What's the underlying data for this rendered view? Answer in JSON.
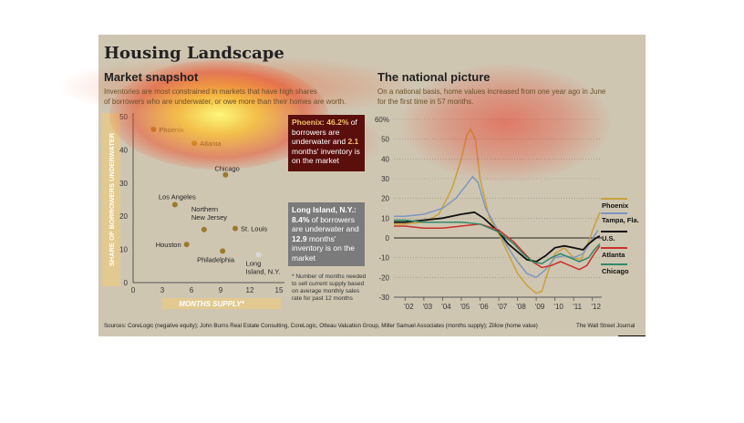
{
  "header": {
    "title": "Housing Landscape"
  },
  "left": {
    "subtitle": "Market snapshot",
    "description_line1": "Inventories are most constrained in markets that have high shares",
    "description_line2": "of borrowers who are underwater, or owe more than their homes are worth.",
    "callout_phoenix": {
      "city": "Phoenix:",
      "pct": "46.2%",
      "t1": "of borrowers are underwater and",
      "months": "2.1",
      "t2": "months' inventory is on the market"
    },
    "callout_longisland": {
      "city": "Long Island, N.Y.:",
      "pct": "8.4%",
      "t1": "of borrowers are underwater and",
      "months": "12.9",
      "t2": "months' inventory is on the market"
    },
    "note": "* Number of months needed to sell current supply based on average monthly sales rate for past 12 months"
  },
  "right": {
    "subtitle": "The national picture",
    "description_line1": "On a national basis, home values increased from one year ago in June",
    "description_line2": "for the first time in 57 months."
  },
  "footer": {
    "sources": "Sources: CoreLogic (negative equity); John Burns Real Estate Consulting, CoreLogic, Otteau Valuation Group, Miller Samuel Associates (months supply); Zillow (home value)",
    "credit": "The Wall Street Journal"
  },
  "chart_data": [
    {
      "type": "scatter",
      "title": "Market snapshot",
      "xlabel": "MONTHS SUPPLY*",
      "ylabel": "SHARE OF BORROWERS UNDERWATER",
      "xlim": [
        0,
        15
      ],
      "ylim": [
        0,
        50
      ],
      "x_ticks": [
        "0",
        "3",
        "6",
        "9",
        "12",
        "15"
      ],
      "y_ticks": [
        "0",
        "10",
        "20",
        "30",
        "40",
        "50"
      ],
      "points": [
        {
          "label": "Phoenix",
          "x": 2.1,
          "y": 46.2,
          "highlight": "dark-red"
        },
        {
          "label": "Atlanta",
          "x": 6.3,
          "y": 42
        },
        {
          "label": "Chicago",
          "x": 9.5,
          "y": 32.5
        },
        {
          "label": "Los Angeles",
          "x": 4.3,
          "y": 23.5
        },
        {
          "label": "Northern New Jersey",
          "x": 7.3,
          "y": 16
        },
        {
          "label": "St. Louis",
          "x": 10.5,
          "y": 16.3
        },
        {
          "label": "Houston",
          "x": 5.5,
          "y": 11.5
        },
        {
          "label": "Philadelphia",
          "x": 9.2,
          "y": 9.5
        },
        {
          "label": "Long Island, N.Y.",
          "x": 12.9,
          "y": 8.4,
          "highlight": "gray"
        }
      ],
      "colors": {
        "point": "#9a7a2e",
        "highlight_dark": "#5c0c0c",
        "highlight_gray": "#7f7f7f"
      }
    },
    {
      "type": "line",
      "title": "The national picture",
      "ylabel": "",
      "ylim": [
        -30,
        60
      ],
      "y_ticks": [
        "60%",
        "50",
        "40",
        "30",
        "20",
        "10",
        "0",
        "-10",
        "-20",
        "-30"
      ],
      "x_ticks": [
        "'02",
        "'03",
        "'04",
        "'05",
        "'06",
        "'07",
        "'08",
        "'09",
        "'10",
        "'11",
        "'12"
      ],
      "x_years": [
        2002,
        2003,
        2004,
        2005,
        2006,
        2007,
        2008,
        2009,
        2010,
        2011,
        2012
      ],
      "series": [
        {
          "name": "Phoenix",
          "color": "#c9a13b",
          "points": [
            [
              2001.4,
              7
            ],
            [
              2002,
              7
            ],
            [
              2003,
              8
            ],
            [
              2003.8,
              12
            ],
            [
              2004.5,
              25
            ],
            [
              2005,
              40
            ],
            [
              2005.3,
              52
            ],
            [
              2005.5,
              55
            ],
            [
              2005.75,
              50
            ],
            [
              2006,
              30
            ],
            [
              2006.5,
              10
            ],
            [
              2007,
              2
            ],
            [
              2007.5,
              -8
            ],
            [
              2008,
              -18
            ],
            [
              2008.5,
              -24
            ],
            [
              2009,
              -28
            ],
            [
              2009.3,
              -27
            ],
            [
              2009.6,
              -18
            ],
            [
              2010,
              -8
            ],
            [
              2010.5,
              -5
            ],
            [
              2011,
              -10
            ],
            [
              2011.4,
              -11
            ],
            [
              2011.8,
              -2
            ],
            [
              2012.1,
              6
            ],
            [
              2012.4,
              13
            ]
          ]
        },
        {
          "name": "Tampa, Fla.",
          "color": "#7e96c0",
          "points": [
            [
              2001.4,
              11
            ],
            [
              2002,
              11
            ],
            [
              2003,
              12
            ],
            [
              2004,
              15
            ],
            [
              2004.7,
              20
            ],
            [
              2005.2,
              26
            ],
            [
              2005.6,
              31
            ],
            [
              2005.9,
              28
            ],
            [
              2006.3,
              15
            ],
            [
              2007,
              3
            ],
            [
              2007.5,
              -5
            ],
            [
              2008,
              -12
            ],
            [
              2008.5,
              -18
            ],
            [
              2009,
              -20
            ],
            [
              2009.5,
              -16
            ],
            [
              2010,
              -10
            ],
            [
              2010.5,
              -9
            ],
            [
              2011,
              -10
            ],
            [
              2011.5,
              -8
            ],
            [
              2011.9,
              -2
            ],
            [
              2012.3,
              4
            ]
          ]
        },
        {
          "name": "U.S.",
          "color": "#111111",
          "points": [
            [
              2001.4,
              8
            ],
            [
              2002,
              8
            ],
            [
              2003,
              9
            ],
            [
              2004,
              10
            ],
            [
              2005,
              12
            ],
            [
              2005.7,
              13
            ],
            [
              2006.2,
              10
            ],
            [
              2007,
              3
            ],
            [
              2007.5,
              -3
            ],
            [
              2008,
              -7
            ],
            [
              2008.5,
              -11
            ],
            [
              2009,
              -12
            ],
            [
              2009.5,
              -9
            ],
            [
              2010,
              -5
            ],
            [
              2010.5,
              -4
            ],
            [
              2011,
              -5
            ],
            [
              2011.5,
              -6
            ],
            [
              2011.8,
              -3
            ],
            [
              2012.2,
              0
            ],
            [
              2012.4,
              1
            ]
          ]
        },
        {
          "name": "Atlanta",
          "color": "#c9312b",
          "points": [
            [
              2001.4,
              6
            ],
            [
              2002,
              6
            ],
            [
              2003,
              5
            ],
            [
              2004,
              5
            ],
            [
              2005,
              6
            ],
            [
              2006,
              7
            ],
            [
              2007,
              4
            ],
            [
              2007.8,
              -2
            ],
            [
              2008.3,
              -7
            ],
            [
              2008.8,
              -12
            ],
            [
              2009.3,
              -15
            ],
            [
              2009.8,
              -14
            ],
            [
              2010.3,
              -12
            ],
            [
              2010.8,
              -14
            ],
            [
              2011.3,
              -16
            ],
            [
              2011.7,
              -14
            ],
            [
              2012.1,
              -8
            ],
            [
              2012.4,
              -4
            ]
          ]
        },
        {
          "name": "Chicago",
          "color": "#2f8a68",
          "points": [
            [
              2001.4,
              9
            ],
            [
              2002,
              9
            ],
            [
              2003,
              8
            ],
            [
              2004,
              8
            ],
            [
              2005,
              8
            ],
            [
              2006,
              7
            ],
            [
              2007,
              3
            ],
            [
              2007.8,
              -3
            ],
            [
              2008.3,
              -8
            ],
            [
              2008.8,
              -12
            ],
            [
              2009.3,
              -13
            ],
            [
              2009.8,
              -10
            ],
            [
              2010.3,
              -8
            ],
            [
              2010.8,
              -10
            ],
            [
              2011.3,
              -12
            ],
            [
              2011.8,
              -10
            ],
            [
              2012.1,
              -6
            ],
            [
              2012.4,
              -3
            ]
          ]
        }
      ]
    }
  ]
}
